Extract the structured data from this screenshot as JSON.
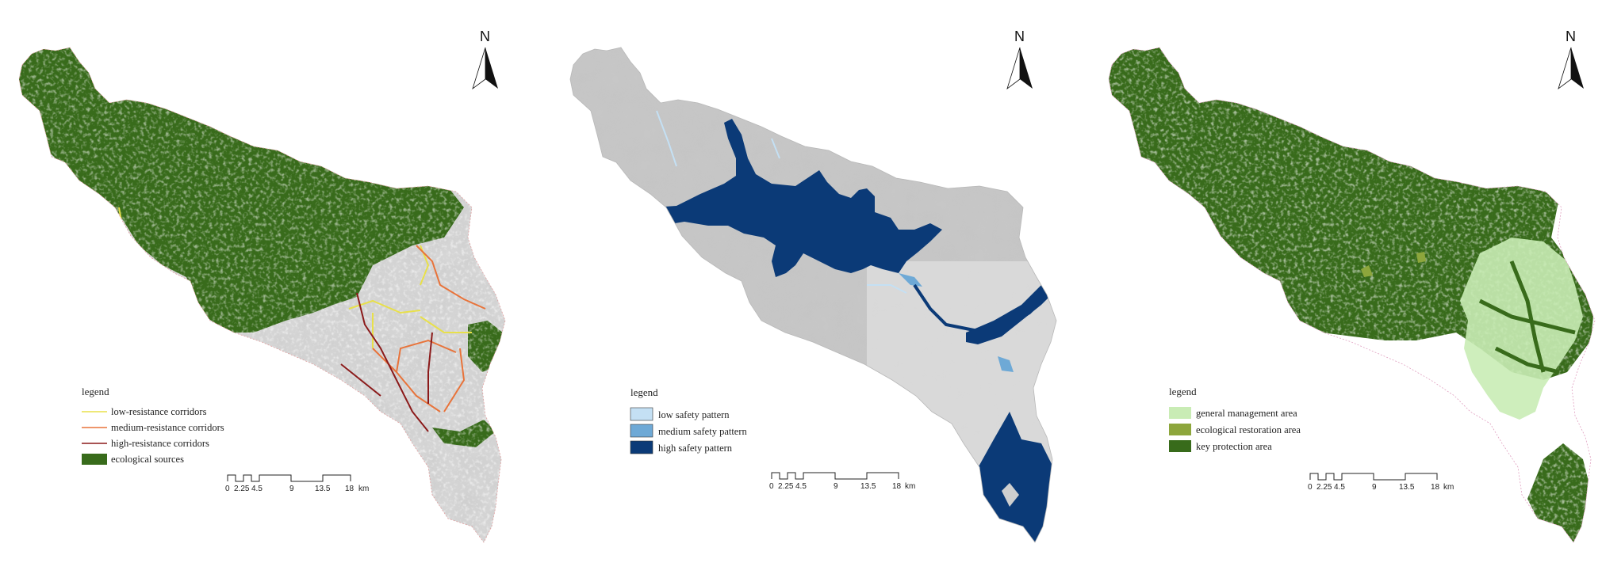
{
  "colors": {
    "eco_green": "#386b1b",
    "hillshade_gray": "#d2d2d2",
    "low_corridor": "#e8e04a",
    "medium_corridor": "#e8733a",
    "high_corridor": "#8b1a1a",
    "low_safety": "#c4e0f4",
    "medium_safety": "#6ea9d6",
    "high_safety": "#0b3a77",
    "general_mgmt": "#c9ecb5",
    "eco_restoration": "#8da63c",
    "key_protection": "#386b1b"
  },
  "panels": [
    {
      "north": "N",
      "legend_title": "legend",
      "legend_items": [
        {
          "label": "low-resistance corridors",
          "symbol": "line",
          "color": "#e8e04a"
        },
        {
          "label": "medium-resistance corridors",
          "symbol": "line",
          "color": "#e8733a"
        },
        {
          "label": "high-resistance corridors",
          "symbol": "line",
          "color": "#8b1a1a"
        },
        {
          "label": "ecological sources",
          "symbol": "box",
          "color": "#386b1b"
        }
      ],
      "scale": {
        "ticks": [
          "0",
          "2.25",
          "4.5",
          "9",
          "13.5",
          "18"
        ],
        "unit": "km"
      }
    },
    {
      "north": "N",
      "legend_title": "legend",
      "legend_items": [
        {
          "label": "low safety pattern",
          "symbol": "box",
          "color": "#c4e0f4"
        },
        {
          "label": "medium safety pattern",
          "symbol": "box",
          "color": "#6ea9d6"
        },
        {
          "label": "high safety pattern",
          "symbol": "box",
          "color": "#0b3a77"
        }
      ],
      "scale": {
        "ticks": [
          "0",
          "2.25",
          "4.5",
          "9",
          "13.5",
          "18"
        ],
        "unit": "km"
      }
    },
    {
      "north": "N",
      "legend_title": "legend",
      "legend_items": [
        {
          "label": "general management area",
          "symbol": "box",
          "color": "#c9ecb5"
        },
        {
          "label": "ecological restoration area",
          "symbol": "box",
          "color": "#8da63c"
        },
        {
          "label": "key protection area",
          "symbol": "box",
          "color": "#386b1b"
        }
      ],
      "scale": {
        "ticks": [
          "0",
          "2.25",
          "4.5",
          "9",
          "13.5",
          "18"
        ],
        "unit": "km"
      }
    }
  ]
}
